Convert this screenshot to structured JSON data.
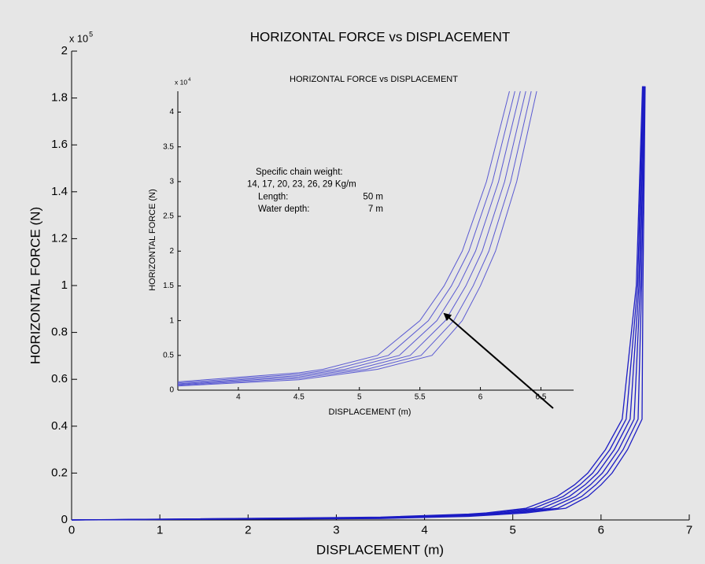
{
  "chart_data": [
    {
      "type": "line",
      "title": "HORIZONTAL FORCE vs DISPLACEMENT",
      "x_label": "DISPLACEMENT (m)",
      "y_label": "HORIZONTAL FORCE (N)",
      "y_multiplier": {
        "base": "x 10",
        "exponent": "5"
      },
      "xlim": [
        0,
        7
      ],
      "ylim": [
        0,
        2
      ],
      "xticks": [
        0,
        1,
        2,
        3,
        4,
        5,
        6,
        7
      ],
      "yticks": [
        0,
        0.2,
        0.4,
        0.6,
        0.8,
        1,
        1.2,
        1.4,
        1.6,
        1.8,
        2
      ],
      "series": [
        {
          "color": "#1c1cc4",
          "x": [
            0,
            3.5,
            4.5,
            4.7,
            5.15,
            5.5,
            5.7,
            5.85,
            6.05,
            6.24,
            6.4,
            6.47
          ],
          "values": [
            0,
            0.012,
            0.025,
            0.03,
            0.05,
            0.1,
            0.15,
            0.2,
            0.3,
            0.43,
            1,
            1.85
          ]
        },
        {
          "color": "#1c1cc4",
          "x": [
            0,
            3.5,
            4.5,
            4.79,
            5.24,
            5.57,
            5.76,
            5.905,
            6.1,
            6.285,
            6.415,
            6.476
          ],
          "values": [
            0,
            0.0105,
            0.023,
            0.03,
            0.05,
            0.1,
            0.15,
            0.2,
            0.3,
            0.43,
            1,
            1.85
          ]
        },
        {
          "color": "#1c1cc4",
          "x": [
            0,
            3.5,
            4.5,
            4.88,
            5.33,
            5.64,
            5.82,
            5.96,
            6.15,
            6.33,
            6.43,
            6.482
          ],
          "values": [
            0,
            0.009,
            0.021,
            0.03,
            0.05,
            0.1,
            0.15,
            0.2,
            0.3,
            0.43,
            1,
            1.85
          ]
        },
        {
          "color": "#1c1cc4",
          "x": [
            0,
            3.5,
            4.5,
            4.97,
            5.42,
            5.71,
            5.88,
            6.015,
            6.2,
            6.375,
            6.445,
            6.488
          ],
          "values": [
            0,
            0.008,
            0.019,
            0.03,
            0.05,
            0.1,
            0.15,
            0.2,
            0.3,
            0.43,
            1,
            1.85
          ]
        },
        {
          "color": "#1c1cc4",
          "x": [
            0,
            3.5,
            4.5,
            5.06,
            5.51,
            5.78,
            5.94,
            6.07,
            6.25,
            6.42,
            6.46,
            6.494
          ],
          "values": [
            0,
            0.007,
            0.017,
            0.03,
            0.05,
            0.1,
            0.15,
            0.2,
            0.3,
            0.43,
            1,
            1.85
          ]
        },
        {
          "color": "#1c1cc4",
          "x": [
            0,
            3.5,
            4.5,
            5.15,
            5.6,
            5.85,
            6.0,
            6.125,
            6.3,
            6.465,
            6.475,
            6.5
          ],
          "values": [
            0,
            0.006,
            0.015,
            0.03,
            0.05,
            0.1,
            0.15,
            0.2,
            0.3,
            0.43,
            1,
            1.85
          ]
        }
      ]
    },
    {
      "type": "line",
      "title": "HORIZONTAL FORCE vs DISPLACEMENT",
      "x_label": "DISPLACEMENT (m)",
      "y_label": "HORIZONTAL FORCE (N)",
      "y_multiplier": {
        "base": "x 10",
        "exponent": "4"
      },
      "xlim": [
        3.5,
        6.77
      ],
      "ylim": [
        0,
        4.3
      ],
      "xticks": [
        4,
        4.5,
        5,
        5.5,
        6,
        6.5
      ],
      "yticks": [
        0,
        0.5,
        1,
        1.5,
        2,
        2.5,
        3,
        3.5,
        4
      ],
      "annotations": [
        "Specific chain weight:",
        "14, 17, 20, 23, 26, 29 Kg/m",
        [
          "Length:",
          "50 m"
        ],
        [
          "Water depth:",
          "7 m"
        ]
      ],
      "series": [
        {
          "color": "#5a5ad2",
          "x": [
            3.5,
            4.5,
            4.7,
            5.15,
            5.5,
            5.7,
            5.85,
            6.05,
            6.24
          ],
          "values": [
            0.12,
            0.25,
            0.3,
            0.5,
            1,
            1.5,
            2,
            3,
            4.3
          ]
        },
        {
          "color": "#5a5ad2",
          "x": [
            3.5,
            4.5,
            4.79,
            5.24,
            5.57,
            5.76,
            5.905,
            6.1,
            6.285
          ],
          "values": [
            0.105,
            0.23,
            0.3,
            0.5,
            1,
            1.5,
            2,
            3,
            4.3
          ]
        },
        {
          "color": "#5a5ad2",
          "x": [
            3.5,
            4.5,
            4.88,
            5.33,
            5.64,
            5.82,
            5.96,
            6.15,
            6.33
          ],
          "values": [
            0.09,
            0.21,
            0.3,
            0.5,
            1,
            1.5,
            2,
            3,
            4.3
          ]
        },
        {
          "color": "#5a5ad2",
          "x": [
            3.5,
            4.5,
            4.97,
            5.42,
            5.71,
            5.88,
            6.015,
            6.2,
            6.375
          ],
          "values": [
            0.08,
            0.19,
            0.3,
            0.5,
            1,
            1.5,
            2,
            3,
            4.3
          ]
        },
        {
          "color": "#5a5ad2",
          "x": [
            3.5,
            4.5,
            5.06,
            5.51,
            5.78,
            5.94,
            6.07,
            6.25,
            6.42
          ],
          "values": [
            0.07,
            0.17,
            0.3,
            0.5,
            1,
            1.5,
            2,
            3,
            4.3
          ]
        },
        {
          "color": "#5a5ad2",
          "x": [
            3.5,
            4.5,
            5.15,
            5.6,
            5.85,
            6.0,
            6.125,
            6.3,
            6.465
          ],
          "values": [
            0.06,
            0.15,
            0.3,
            0.5,
            1,
            1.5,
            2,
            3,
            4.3
          ]
        }
      ]
    }
  ]
}
